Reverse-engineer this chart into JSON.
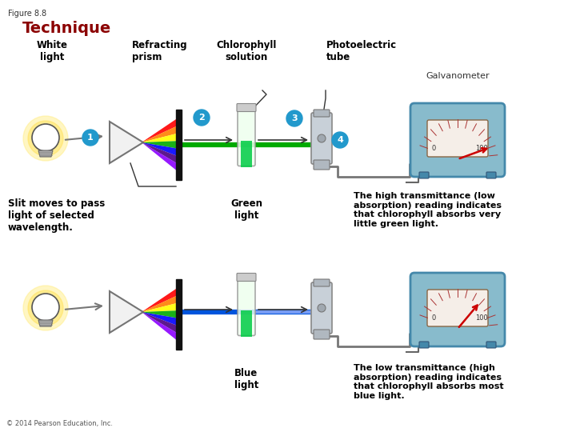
{
  "figure_label": "Figure 8.8",
  "title": "Technique",
  "title_color": "#8B0000",
  "bg_color": "#FFFFFF",
  "labels": {
    "white_light": "White\nlight",
    "refracting_prism": "Refracting\nprism",
    "chlorophyll_solution": "Chlorophyll\nsolution",
    "photoelectric_tube": "Photoelectric\ntube",
    "galvanometer": "Galvanometer",
    "slit_moves": "Slit moves to pass\nlight of selected\nwavelength.",
    "green_light": "Green\nlight",
    "blue_light": "Blue\nlight",
    "high_transmittance": "The high transmittance (low\nabsorption) reading indicates\nthat chlorophyll absorbs very\nlittle green light.",
    "low_transmittance": "The low transmittance (high\nabsorption) reading indicates\nthat chlorophyll absorbs most\nblue light.",
    "copyright": "© 2014 Pearson Education, Inc."
  },
  "circle_color": "#2299CC",
  "circle_text_color": "#FFFFFF",
  "rainbow_colors": [
    "#FF0000",
    "#FF7F00",
    "#FFFF00",
    "#00AA00",
    "#0000FF",
    "#4B0082",
    "#8B00FF"
  ],
  "green_beam_color": "#00AA00",
  "blue_beam_color": "#0055DD",
  "slit_color": "#111111",
  "galv_bg_color": "#7AAABB",
  "galv_face_color": "#88BBCC",
  "gauge_bg_color": "#F5EEE8",
  "arrow_color": "#333333"
}
